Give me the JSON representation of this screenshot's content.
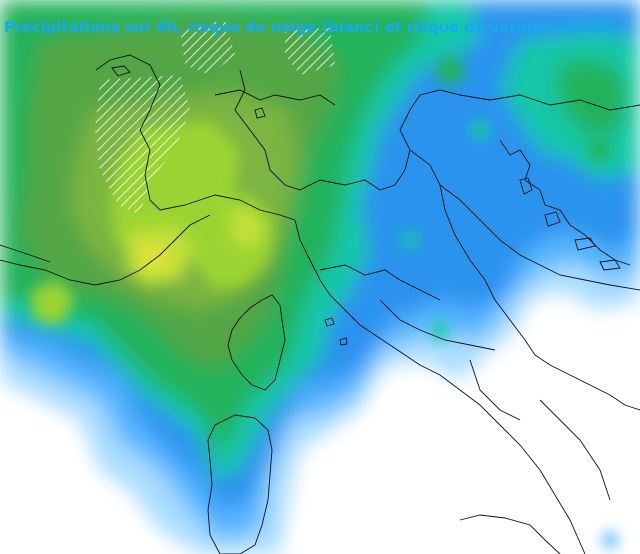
{
  "map": {
    "title": "Précipitations sur 6h, risque de neige (blanc) et risque de verglas (violet)",
    "legend_colors": {
      "background": "#ffffff",
      "very_light": "#a9dcff",
      "light": "#55b4ff",
      "moderate": "#2b93ee",
      "teal": "#12c8a8",
      "green": "#22b25a",
      "dark_green": "#52a545",
      "olive": "#7cb542",
      "lime": "#9bd433",
      "yellow_green": "#c0df37",
      "max": "#dfe338",
      "snow_hatch": "#ffffff",
      "borders": "#111111"
    }
  }
}
